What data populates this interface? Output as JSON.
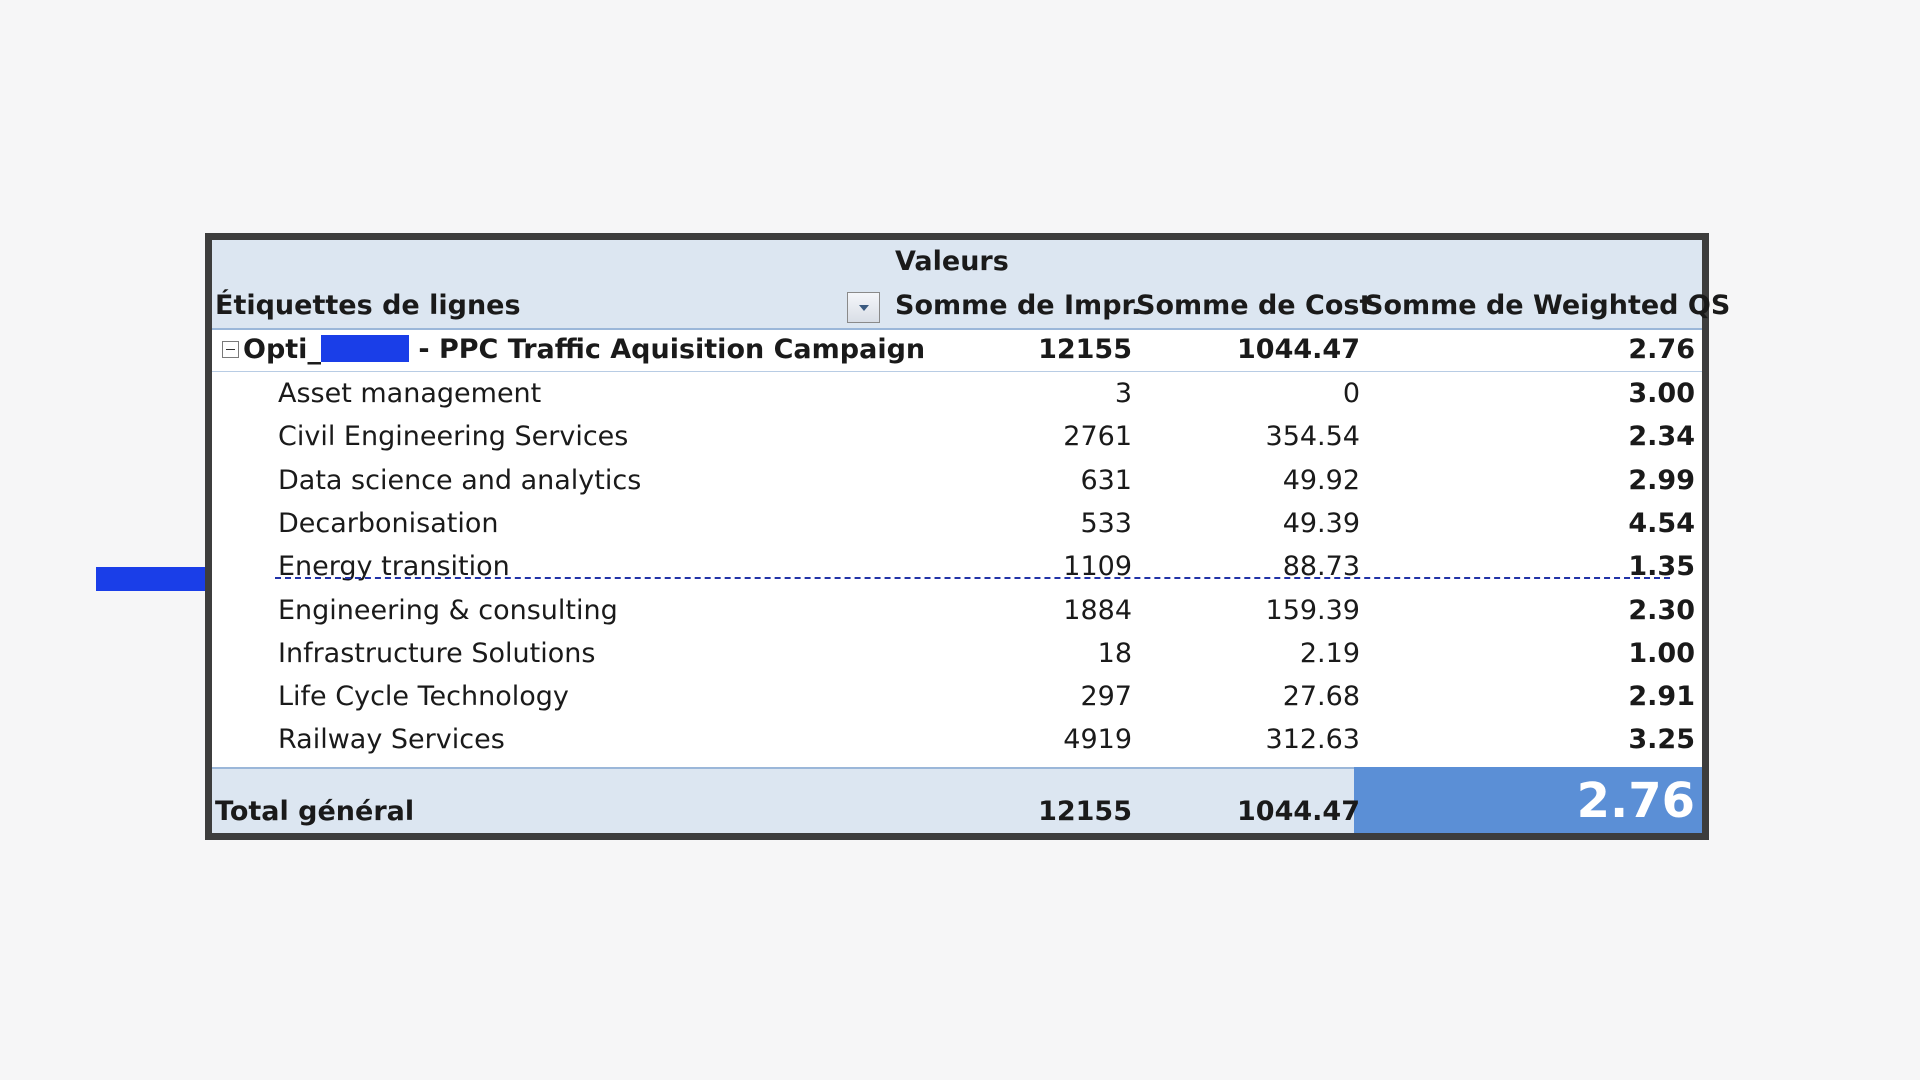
{
  "header": {
    "values_label": "Valeurs",
    "row_labels_title": "Étiquettes de lignes",
    "columns": [
      "Somme de Impr.",
      "Somme de Cost",
      "Somme de Weighted QS"
    ]
  },
  "group": {
    "label_prefix": "Opti_",
    "label_suffix": " - PPC Traffic Aquisition Campaign",
    "impr": "12155",
    "cost": "1044.47",
    "qs": "2.76"
  },
  "rows": [
    {
      "label": "Asset management",
      "impr": "3",
      "cost": "0",
      "qs": "3.00"
    },
    {
      "label": "Civil Engineering Services",
      "impr": "2761",
      "cost": "354.54",
      "qs": "2.34"
    },
    {
      "label": "Data science and analytics",
      "impr": "631",
      "cost": "49.92",
      "qs": "2.99"
    },
    {
      "label": "Decarbonisation",
      "impr": "533",
      "cost": "49.39",
      "qs": "4.54"
    },
    {
      "label": "Energy transition",
      "impr": "1109",
      "cost": "88.73",
      "qs": "1.35",
      "struck": true
    },
    {
      "label": "Engineering & consulting",
      "impr": "1884",
      "cost": "159.39",
      "qs": "2.30"
    },
    {
      "label": "Infrastructure Solutions",
      "impr": "18",
      "cost": "2.19",
      "qs": "1.00"
    },
    {
      "label": "Life Cycle Technology",
      "impr": "297",
      "cost": "27.68",
      "qs": "2.91"
    },
    {
      "label": "Railway Services",
      "impr": "4919",
      "cost": "312.63",
      "qs": "3.25"
    }
  ],
  "total": {
    "label": "Total général",
    "impr": "12155",
    "cost": "1044.47",
    "qs": "2.76"
  },
  "colors": {
    "header_bg": "#dce6f1",
    "highlight": "#5b8fd6",
    "arrow": "#1a3ee8",
    "strike": "#2233a8"
  },
  "icons": {
    "filter": "filter-dropdown-icon",
    "collapse": "collapse-minus-icon",
    "pointer": "right-arrow-icon"
  }
}
